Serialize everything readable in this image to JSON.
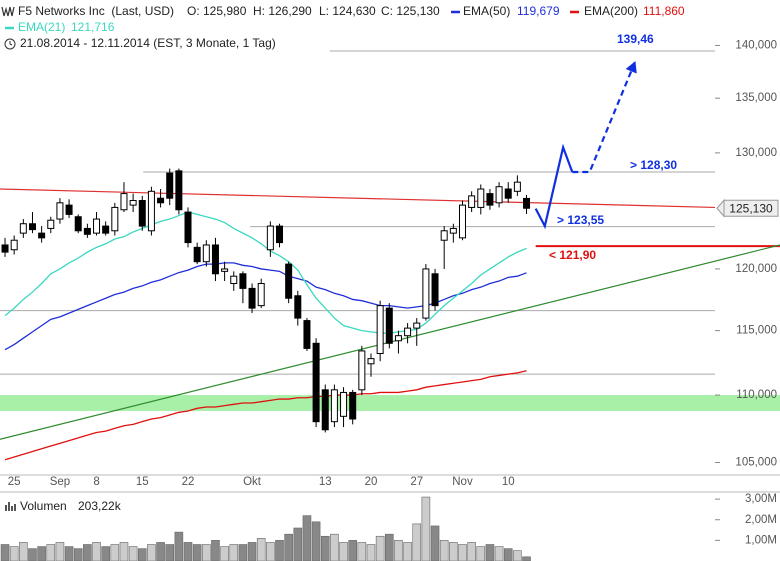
{
  "chart_data": {
    "type": "candlestick",
    "title": "F5 Networks Inc  (Last, USD)",
    "ohlc_labels": [
      "O: 125,980",
      "H: 126,290",
      "L: 124,630",
      "C: 125,130"
    ],
    "subtitle": "21.08.2014 - 12.11.2014 (EST, 3 Monate, 1 Tag)",
    "categories": [
      null,
      "25",
      null,
      null,
      null,
      null,
      "Sep",
      null,
      null,
      null,
      "8",
      null,
      null,
      null,
      null,
      "15",
      null,
      null,
      null,
      null,
      "22",
      null,
      null,
      null,
      null,
      null,
      null,
      "Okt",
      null,
      null,
      null,
      null,
      null,
      null,
      null,
      "13",
      null,
      null,
      null,
      null,
      "20",
      null,
      null,
      null,
      null,
      "27",
      null,
      null,
      null,
      null,
      "Nov",
      null,
      null,
      null,
      null,
      "10",
      null,
      null
    ],
    "xlim": [
      -0.55,
      77.6
    ],
    "ylim": [
      104.1,
      141.5
    ],
    "log_scale": true,
    "yticks": [
      {
        "value": 105,
        "label": "105,000"
      },
      {
        "value": 110,
        "label": "110,000"
      },
      {
        "value": 115,
        "label": "115,000"
      },
      {
        "value": 120,
        "label": "120,000"
      },
      {
        "value": 130,
        "label": "130,000"
      },
      {
        "value": 135,
        "label": "135,000"
      },
      {
        "value": 140,
        "label": "140,000"
      }
    ],
    "candles": {
      "up_color": "#ffffff",
      "down_color": "#000000",
      "open": [
        122.0,
        121.6,
        123.0,
        123.8,
        123.0,
        123.4,
        124.2,
        125.4,
        124.4,
        123.4,
        123.0,
        123.6,
        123.2,
        125.0,
        125.4,
        125.8,
        123.2,
        126.0,
        128.2,
        128.4,
        124.8,
        121.8,
        120.6,
        122.0,
        119.8,
        118.8,
        119.6,
        118.4,
        117.0,
        121.6,
        123.6,
        120.4,
        117.8,
        115.8,
        114.0,
        110.4,
        108.0,
        108.4,
        110.2,
        110.4,
        112.4,
        113.2,
        116.8,
        114.2,
        114.6,
        115.2,
        116.0,
        119.6,
        122.4,
        123.0,
        122.6,
        125.2,
        125.2,
        126.4,
        125.6,
        126.8,
        126.6,
        125.98
      ],
      "high": [
        122.6,
        122.8,
        124.2,
        124.8,
        123.6,
        124.4,
        126.0,
        125.9,
        124.6,
        123.8,
        124.8,
        124.0,
        125.6,
        127.4,
        126.4,
        126.2,
        127.0,
        126.8,
        128.6,
        128.6,
        125.2,
        122.2,
        122.4,
        122.6,
        120.6,
        119.8,
        119.8,
        118.8,
        119.2,
        124.0,
        123.8,
        120.6,
        118.2,
        116.0,
        114.4,
        110.8,
        110.8,
        110.6,
        110.4,
        113.8,
        113.2,
        117.4,
        117.2,
        115.0,
        115.6,
        116.0,
        120.4,
        120.0,
        123.6,
        123.8,
        125.8,
        126.6,
        127.2,
        126.8,
        127.4,
        127.4,
        128.0,
        126.29
      ],
      "low": [
        121.0,
        121.2,
        122.6,
        123.0,
        122.2,
        123.0,
        123.8,
        124.3,
        123.0,
        122.6,
        122.8,
        122.8,
        122.8,
        124.8,
        124.8,
        123.2,
        122.8,
        125.2,
        125.4,
        124.6,
        121.8,
        120.4,
        120.2,
        119.0,
        119.0,
        118.2,
        117.2,
        116.4,
        116.8,
        121.0,
        121.8,
        117.2,
        115.4,
        113.4,
        107.6,
        107.2,
        107.6,
        107.6,
        107.8,
        110.0,
        111.4,
        112.6,
        113.6,
        113.2,
        114.0,
        113.8,
        115.8,
        116.6,
        120.0,
        122.2,
        122.4,
        124.8,
        124.6,
        125.0,
        125.2,
        125.6,
        126.2,
        124.63
      ],
      "close": [
        121.4,
        122.4,
        123.8,
        123.3,
        122.6,
        124.1,
        125.6,
        124.6,
        123.2,
        122.9,
        124.2,
        123.0,
        125.2,
        126.4,
        125.8,
        123.6,
        126.6,
        125.6,
        126.0,
        125.0,
        122.2,
        120.6,
        122.0,
        119.6,
        120.0,
        119.4,
        118.4,
        116.8,
        118.8,
        123.6,
        122.2,
        117.6,
        116.0,
        113.6,
        108.0,
        107.4,
        110.4,
        110.2,
        108.2,
        113.4,
        112.8,
        117.0,
        114.0,
        114.6,
        115.2,
        115.6,
        120.0,
        117.0,
        123.2,
        123.4,
        125.4,
        126.2,
        126.8,
        125.4,
        127.0,
        126.0,
        127.4,
        125.13
      ]
    },
    "series": [
      {
        "name": "EMA(50)",
        "color": "#1f2fd8",
        "last_label": "119,679",
        "values": [
          113.5,
          113.9,
          114.4,
          114.9,
          115.4,
          115.9,
          116.1,
          116.4,
          116.7,
          117.0,
          117.3,
          117.6,
          117.9,
          118.1,
          118.4,
          118.6,
          118.9,
          119.1,
          119.4,
          119.7,
          119.9,
          120.2,
          120.4,
          120.4,
          120.5,
          120.5,
          120.3,
          120.2,
          120.0,
          119.9,
          119.8,
          119.4,
          119.2,
          119.0,
          118.5,
          118.3,
          118.0,
          117.8,
          117.5,
          117.4,
          117.2,
          117.0,
          117.0,
          116.9,
          116.8,
          116.9,
          117.0,
          117.2,
          117.5,
          117.8,
          118.0,
          118.3,
          118.5,
          118.8,
          119.0,
          119.3,
          119.4,
          119.679
        ]
      },
      {
        "name": "EMA(200)",
        "color": "#e01010",
        "last_label": "111,860",
        "values": [
          105.2,
          105.4,
          105.6,
          105.8,
          106.0,
          106.2,
          106.4,
          106.6,
          106.8,
          107.0,
          107.2,
          107.3,
          107.5,
          107.7,
          107.8,
          108.0,
          108.2,
          108.3,
          108.5,
          108.7,
          108.8,
          109.0,
          109.1,
          109.1,
          109.2,
          109.3,
          109.4,
          109.4,
          109.5,
          109.6,
          109.7,
          109.7,
          109.8,
          109.8,
          109.9,
          109.9,
          110.0,
          110.0,
          110.0,
          110.1,
          110.1,
          110.2,
          110.2,
          110.2,
          110.3,
          110.4,
          110.6,
          110.7,
          110.8,
          110.9,
          111.0,
          111.1,
          111.2,
          111.4,
          111.5,
          111.6,
          111.7,
          111.86
        ]
      },
      {
        "name": "EMA(21)",
        "color": "#3ad8c0",
        "last_label": "121,716",
        "values": [
          116.2,
          116.8,
          117.5,
          118.1,
          118.8,
          119.6,
          120.0,
          120.5,
          120.9,
          121.4,
          121.8,
          122.1,
          122.5,
          122.7,
          123.1,
          123.4,
          123.7,
          124.0,
          124.2,
          124.5,
          124.8,
          124.6,
          124.4,
          124.2,
          123.9,
          123.4,
          123.0,
          122.6,
          122.1,
          121.5,
          121.1,
          120.6,
          119.9,
          118.7,
          117.6,
          116.8,
          116.0,
          115.4,
          115.2,
          115.0,
          114.9,
          114.8,
          114.8,
          114.9,
          115.0,
          115.1,
          115.6,
          116.3,
          117.0,
          117.6,
          118.2,
          118.8,
          119.5,
          120.0,
          120.5,
          121.0,
          121.4,
          121.716
        ]
      }
    ],
    "last_price": {
      "value": 125.13,
      "label": "125,130"
    },
    "levels": [
      {
        "value": 139.46,
        "label": "139,46",
        "color": "#aaaaaa",
        "label_color": "#1030e0",
        "x": [
          35.5,
          77.6
        ]
      },
      {
        "value": 128.3,
        "label": "> 128,30",
        "color": "#aaaaaa",
        "label_color": "#1030e0",
        "x": [
          15.1,
          77.6
        ]
      },
      {
        "value": 123.55,
        "label": "> 123,55",
        "color": "#aaaaaa",
        "label_color": "#1030e0",
        "x": [
          26.8,
          77.6
        ]
      },
      {
        "value": 121.9,
        "label": "< 121,90",
        "color": "#e01010",
        "label_color": "#e01010",
        "x": [
          58.0,
          84.7
        ]
      },
      {
        "value": 116.6,
        "color": "#aaaaaa",
        "x": [
          -0.55,
          77.6
        ]
      },
      {
        "value": 111.6,
        "color": "#aaaaaa",
        "x": [
          -0.55,
          77.6
        ]
      }
    ],
    "support_zone": {
      "range": [
        108.8,
        110.0
      ],
      "color": "#a8f0a8"
    },
    "trendlines": [
      {
        "color": "#e03030",
        "x": [
          -0.55,
          77.6
        ],
        "y": [
          126.8,
          125.2
        ]
      },
      {
        "color": "#2e8b2e",
        "x": [
          -0.55,
          84.7
        ],
        "y": [
          106.7,
          122.0
        ]
      }
    ],
    "projection": {
      "color": "#1030e0",
      "solid": {
        "x": [
          58.0,
          59.0,
          61.0,
          62.0
        ],
        "y": [
          125.1,
          123.6,
          130.5,
          128.3
        ]
      },
      "dashed": {
        "x": [
          62.0,
          63.9,
          68.9
        ],
        "y": [
          128.3,
          128.3,
          138.5
        ]
      }
    },
    "volume": {
      "title": "Volumen",
      "last_label": "203,22k",
      "up_color": "#cccccc",
      "down_color": "#888888",
      "ylim": [
        0,
        3200000
      ],
      "yticks": [
        {
          "value": 1000000,
          "label": "1,00M"
        },
        {
          "value": 2000000,
          "label": "2,00M"
        },
        {
          "value": 3000000,
          "label": "3,00M"
        }
      ],
      "values": [
        800000,
        700000,
        900000,
        600000,
        700000,
        800000,
        900000,
        700000,
        600000,
        800000,
        900000,
        700000,
        800000,
        900000,
        700000,
        600000,
        800000,
        900000,
        800000,
        1400000,
        900000,
        800000,
        800000,
        1000000,
        700000,
        800000,
        800000,
        900000,
        1100000,
        900000,
        1000000,
        1300000,
        1600000,
        2200000,
        1900000,
        1200000,
        1300000,
        900000,
        1000000,
        900000,
        800000,
        1200000,
        1300000,
        1000000,
        900000,
        1800000,
        3100000,
        1700000,
        1000000,
        900000,
        800000,
        900000,
        700000,
        800000,
        700000,
        600000,
        500000,
        203220
      ]
    }
  }
}
